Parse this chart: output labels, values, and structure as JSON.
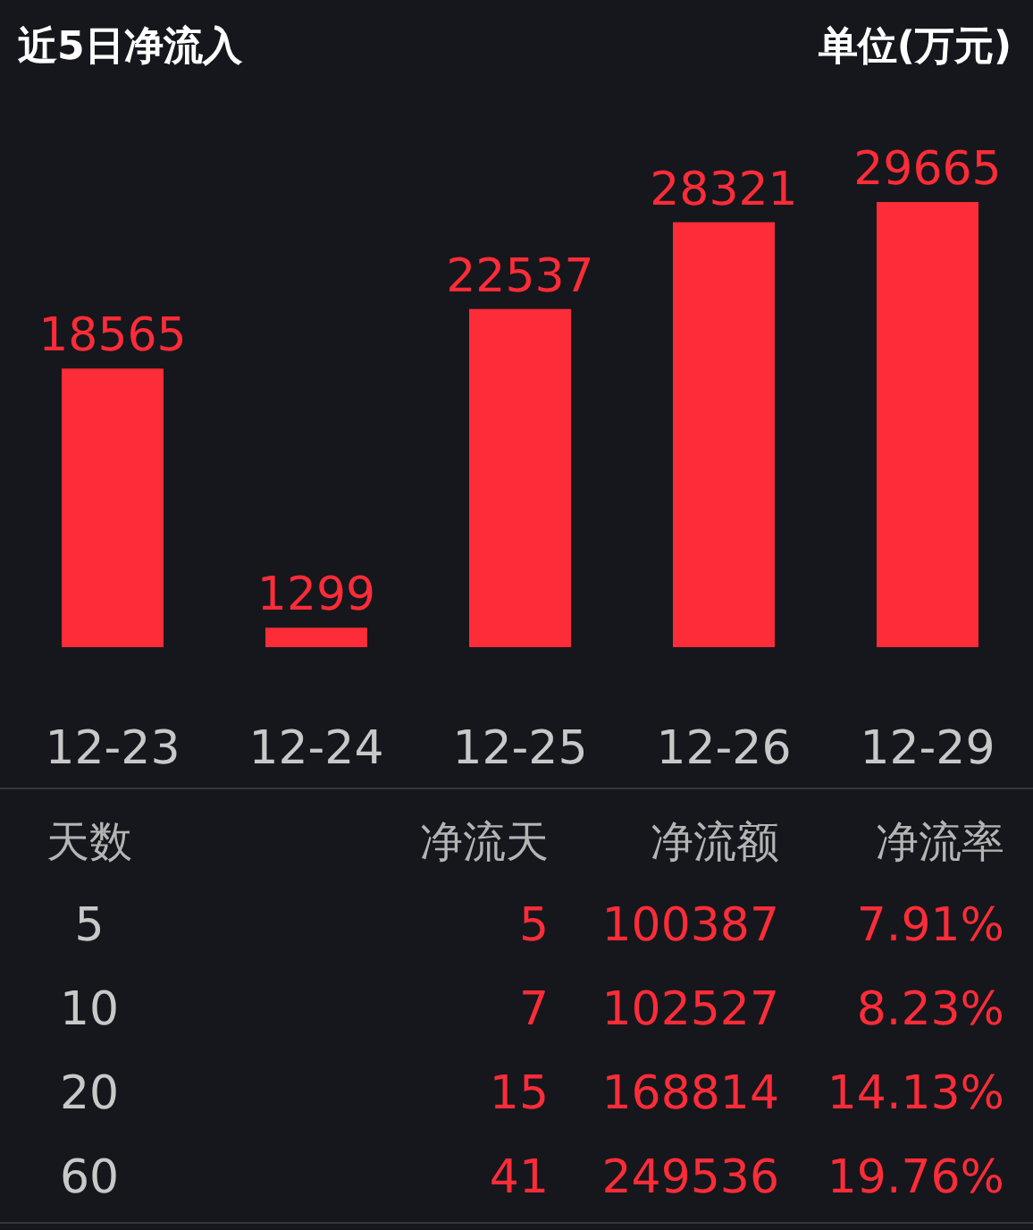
{
  "chart_data": [
    {
      "type": "bar",
      "title": "近5日净流入",
      "subtitle": "单位(万元)",
      "categories": [
        "12-23",
        "12-24",
        "12-25",
        "12-26",
        "12-29"
      ],
      "values": [
        18565,
        1299,
        22537,
        28321,
        29665
      ],
      "color": "#fc2c38",
      "data_labels": true
    },
    {
      "type": "other",
      "categories": [
        "天数",
        "净流天",
        "净流额",
        "净流率"
      ],
      "annotations": [
        "5",
        "5",
        "100387",
        "7.91%",
        "10",
        "7",
        "102527",
        "8.23%",
        "20",
        "15",
        "168814",
        "14.13%",
        "60",
        "41",
        "249536",
        "19.76%"
      ]
    }
  ]
}
